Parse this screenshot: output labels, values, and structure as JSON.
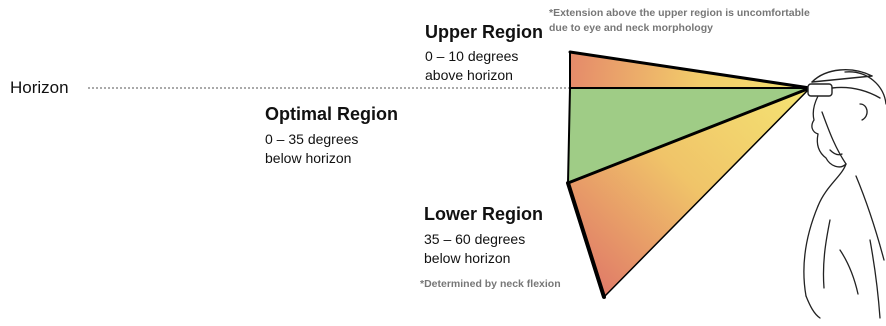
{
  "horizon": {
    "label": "Horizon"
  },
  "regions": [
    {
      "id": "upper",
      "title": "Upper Region",
      "lines": [
        "0 – 10 degrees",
        "above horizon"
      ],
      "gradient": [
        "#e58a6a",
        "#f2df6e"
      ]
    },
    {
      "id": "optimal",
      "title": "Optimal Region",
      "lines": [
        "0 – 35 degrees",
        "below horizon"
      ],
      "color": "#9fcc86"
    },
    {
      "id": "lower",
      "title": "Lower Region",
      "lines": [
        "35 – 60 degrees",
        "below horizon"
      ],
      "gradient": [
        "#e58a6a",
        "#f2df6e"
      ]
    }
  ],
  "notes": {
    "upper": [
      "*Extension above the upper region is uncomfortable",
      "due to eye and neck morphology"
    ],
    "lower": "*Determined by neck flexion"
  },
  "icons": {
    "person": "person-profile-icon",
    "headset": "headset-icon"
  }
}
